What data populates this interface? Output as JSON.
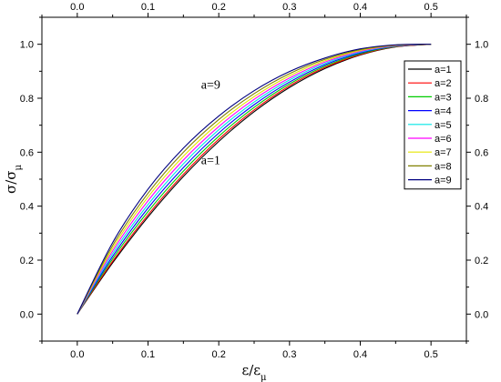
{
  "chart_data": {
    "type": "line",
    "title": "",
    "xlabel": {
      "main": "ε/ε",
      "sub": "μ"
    },
    "ylabel": {
      "main": "σ/σ",
      "sub": "μ"
    },
    "xlim": [
      -0.05,
      0.55
    ],
    "ylim": [
      -0.1,
      1.1
    ],
    "xticks": [
      0.0,
      0.1,
      0.2,
      0.3,
      0.4,
      0.5
    ],
    "yticks": [
      0.0,
      0.2,
      0.4,
      0.6,
      0.8,
      1.0
    ],
    "xtick_labels": [
      "0.0",
      "0.1",
      "0.2",
      "0.3",
      "0.4",
      "0.5"
    ],
    "ytick_labels": [
      "0.0",
      "0.2",
      "0.4",
      "0.6",
      "0.8",
      "1.0"
    ],
    "grid": false,
    "legend_position": "top-right",
    "mirror_axes": true,
    "x": [
      0.0,
      0.05,
      0.1,
      0.15,
      0.2,
      0.25,
      0.3,
      0.35,
      0.4,
      0.45,
      0.5
    ],
    "series": [
      {
        "name": "a=1",
        "color": "#000000",
        "y": [
          0.0,
          0.19,
          0.36,
          0.51,
          0.64,
          0.75,
          0.84,
          0.91,
          0.96,
          0.99,
          1.0
        ]
      },
      {
        "name": "a=2",
        "color": "#ff0000",
        "y": [
          0.0,
          0.196,
          0.368,
          0.518,
          0.648,
          0.757,
          0.846,
          0.914,
          0.962,
          0.991,
          1.0
        ]
      },
      {
        "name": "a=3",
        "color": "#00cc00",
        "y": [
          0.0,
          0.205,
          0.38,
          0.53,
          0.659,
          0.766,
          0.853,
          0.919,
          0.965,
          0.992,
          1.0
        ]
      },
      {
        "name": "a=4",
        "color": "#0000ff",
        "y": [
          0.0,
          0.214,
          0.393,
          0.543,
          0.671,
          0.776,
          0.86,
          0.924,
          0.968,
          0.993,
          1.0
        ]
      },
      {
        "name": "a=5",
        "color": "#00e5e5",
        "y": [
          0.0,
          0.224,
          0.406,
          0.557,
          0.683,
          0.786,
          0.868,
          0.929,
          0.971,
          0.994,
          1.0
        ]
      },
      {
        "name": "a=6",
        "color": "#ff00ff",
        "y": [
          0.0,
          0.234,
          0.42,
          0.571,
          0.695,
          0.796,
          0.875,
          0.934,
          0.974,
          0.995,
          1.0
        ]
      },
      {
        "name": "a=7",
        "color": "#e5e500",
        "y": [
          0.0,
          0.244,
          0.434,
          0.585,
          0.708,
          0.806,
          0.883,
          0.939,
          0.977,
          0.996,
          1.0
        ]
      },
      {
        "name": "a=8",
        "color": "#808000",
        "y": [
          0.0,
          0.254,
          0.448,
          0.6,
          0.721,
          0.817,
          0.891,
          0.944,
          0.98,
          0.997,
          1.0
        ]
      },
      {
        "name": "a=9",
        "color": "#000080",
        "y": [
          0.0,
          0.265,
          0.463,
          0.615,
          0.734,
          0.828,
          0.899,
          0.949,
          0.983,
          0.998,
          1.0
        ]
      }
    ],
    "annotations": [
      {
        "text": "a=9",
        "x": 0.175,
        "y": 0.835
      },
      {
        "text": "a=1",
        "x": 0.175,
        "y": 0.555
      }
    ]
  }
}
